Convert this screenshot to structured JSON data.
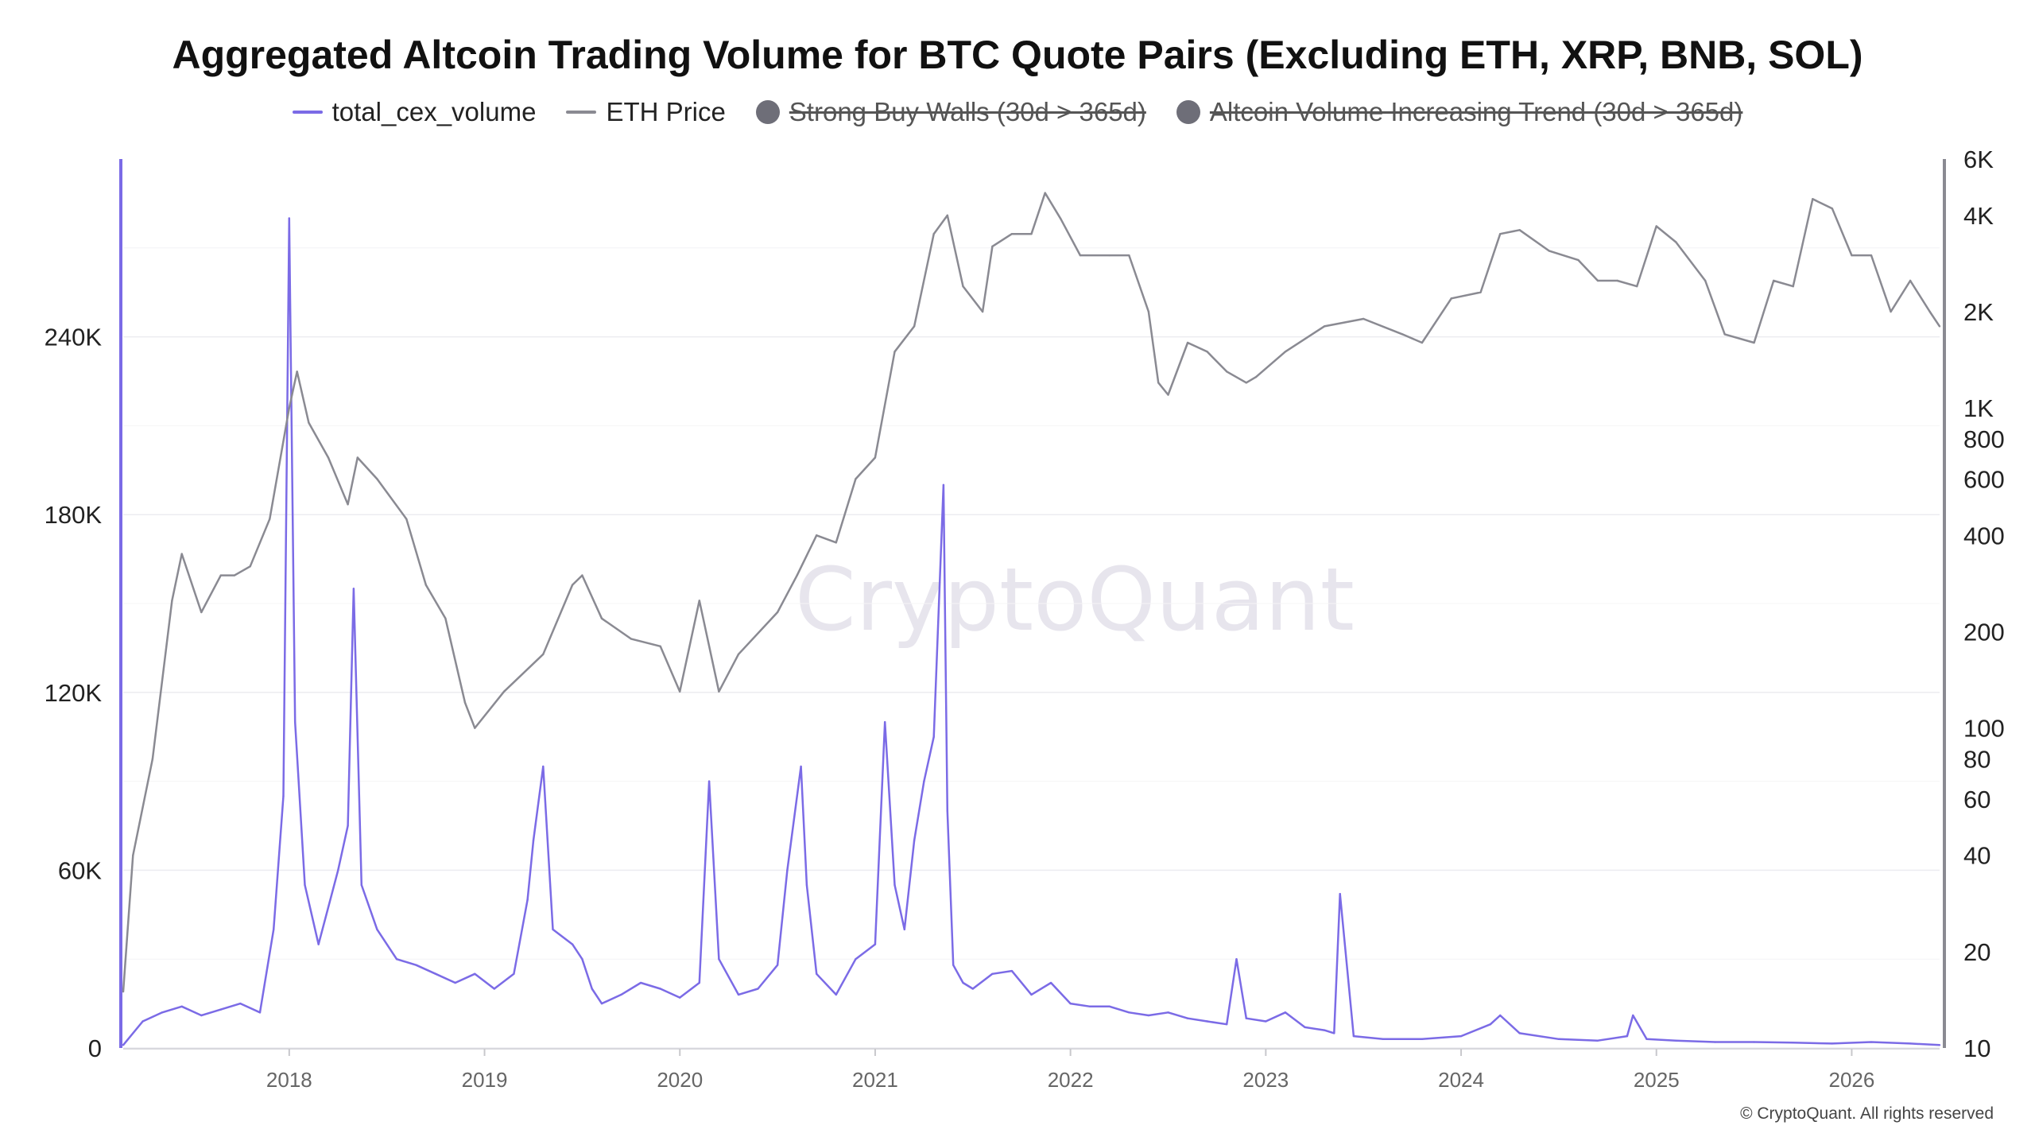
{
  "title": "Aggregated Altcoin Trading Volume for BTC Quote Pairs (Excluding ETH, XRP, BNB, SOL)",
  "watermark": "CryptoQuant",
  "copyright": "© CryptoQuant. All rights reserved",
  "legend": [
    {
      "label": "total_cex_volume",
      "type": "line",
      "color": "#7b6be6",
      "active": true
    },
    {
      "label": "ETH Price",
      "type": "line",
      "color": "#8a8a92",
      "active": true
    },
    {
      "label": "Strong Buy Walls (30d > 365d)",
      "type": "dot",
      "color": "#6e6e78",
      "active": false
    },
    {
      "label": "Altcoin Volume Increasing Trend (30d > 365d)",
      "type": "dot",
      "color": "#6e6e78",
      "active": false
    }
  ],
  "chart_data": {
    "type": "line",
    "x_ticks": [
      "2018",
      "2019",
      "2020",
      "2021",
      "2022",
      "2023",
      "2024",
      "2025",
      "2026"
    ],
    "x_range": [
      2017.15,
      2026.45
    ],
    "y_left": {
      "label": "",
      "ticks": [
        "0",
        "60K",
        "120K",
        "180K",
        "240K"
      ],
      "tick_values": [
        0,
        60000,
        120000,
        180000,
        240000
      ],
      "range": [
        0,
        300000
      ]
    },
    "y_right": {
      "label": "",
      "scale": "log",
      "ticks": [
        "10",
        "20",
        "40",
        "60",
        "80",
        "100",
        "200",
        "400",
        "600",
        "800",
        "1K",
        "2K",
        "4K",
        "6K"
      ],
      "tick_values": [
        10,
        20,
        40,
        60,
        80,
        100,
        200,
        400,
        600,
        800,
        1000,
        2000,
        4000,
        6000
      ],
      "range": [
        10,
        6000
      ]
    },
    "grid": true,
    "series": [
      {
        "name": "total_cex_volume",
        "axis": "left",
        "color": "#7b6be6",
        "x": [
          2017.15,
          2017.25,
          2017.35,
          2017.45,
          2017.55,
          2017.65,
          2017.75,
          2017.85,
          2017.92,
          2017.97,
          2018.0,
          2018.03,
          2018.08,
          2018.15,
          2018.25,
          2018.3,
          2018.33,
          2018.37,
          2018.45,
          2018.55,
          2018.65,
          2018.75,
          2018.85,
          2018.95,
          2019.05,
          2019.15,
          2019.22,
          2019.25,
          2019.3,
          2019.35,
          2019.45,
          2019.5,
          2019.55,
          2019.6,
          2019.7,
          2019.8,
          2019.9,
          2020.0,
          2020.1,
          2020.15,
          2020.2,
          2020.3,
          2020.4,
          2020.5,
          2020.55,
          2020.62,
          2020.65,
          2020.7,
          2020.8,
          2020.9,
          2021.0,
          2021.05,
          2021.1,
          2021.15,
          2021.2,
          2021.25,
          2021.3,
          2021.35,
          2021.37,
          2021.4,
          2021.45,
          2021.5,
          2021.6,
          2021.7,
          2021.8,
          2021.9,
          2022.0,
          2022.1,
          2022.2,
          2022.3,
          2022.4,
          2022.5,
          2022.6,
          2022.7,
          2022.8,
          2022.85,
          2022.9,
          2023.0,
          2023.1,
          2023.2,
          2023.3,
          2023.35,
          2023.38,
          2023.45,
          2023.6,
          2023.8,
          2024.0,
          2024.15,
          2024.2,
          2024.3,
          2024.5,
          2024.7,
          2024.85,
          2024.88,
          2024.95,
          2025.1,
          2025.3,
          2025.5,
          2025.7,
          2025.9,
          2026.1,
          2026.3,
          2026.45
        ],
        "values": [
          1000,
          9000,
          12000,
          14000,
          11000,
          13000,
          15000,
          12000,
          40000,
          85000,
          280000,
          110000,
          55000,
          35000,
          60000,
          75000,
          155000,
          55000,
          40000,
          30000,
          28000,
          25000,
          22000,
          25000,
          20000,
          25000,
          50000,
          70000,
          95000,
          40000,
          35000,
          30000,
          20000,
          15000,
          18000,
          22000,
          20000,
          17000,
          22000,
          90000,
          30000,
          18000,
          20000,
          28000,
          60000,
          95000,
          55000,
          25000,
          18000,
          30000,
          35000,
          110000,
          55000,
          40000,
          70000,
          90000,
          105000,
          190000,
          80000,
          28000,
          22000,
          20000,
          25000,
          26000,
          18000,
          22000,
          15000,
          14000,
          14000,
          12000,
          11000,
          12000,
          10000,
          9000,
          8000,
          30000,
          10000,
          9000,
          12000,
          7000,
          6000,
          5000,
          52000,
          4000,
          3000,
          3000,
          4000,
          8000,
          11000,
          5000,
          3000,
          2500,
          4000,
          11000,
          3000,
          2500,
          2000,
          2000,
          1800,
          1500,
          2000,
          1500,
          1000
        ]
      },
      {
        "name": "ETH Price",
        "axis": "right",
        "color": "#8a8a92",
        "x": [
          2017.15,
          2017.2,
          2017.3,
          2017.4,
          2017.45,
          2017.55,
          2017.65,
          2017.72,
          2017.8,
          2017.9,
          2018.0,
          2018.04,
          2018.1,
          2018.2,
          2018.3,
          2018.35,
          2018.45,
          2018.6,
          2018.7,
          2018.8,
          2018.9,
          2018.95,
          2019.1,
          2019.3,
          2019.45,
          2019.5,
          2019.6,
          2019.75,
          2019.9,
          2020.0,
          2020.1,
          2020.2,
          2020.3,
          2020.5,
          2020.6,
          2020.7,
          2020.8,
          2020.9,
          2021.0,
          2021.1,
          2021.2,
          2021.3,
          2021.37,
          2021.45,
          2021.55,
          2021.6,
          2021.7,
          2021.8,
          2021.87,
          2021.95,
          2022.05,
          2022.2,
          2022.3,
          2022.4,
          2022.45,
          2022.5,
          2022.6,
          2022.7,
          2022.8,
          2022.9,
          2022.95,
          2023.1,
          2023.3,
          2023.5,
          2023.7,
          2023.8,
          2023.95,
          2024.1,
          2024.2,
          2024.3,
          2024.45,
          2024.6,
          2024.7,
          2024.8,
          2024.9,
          2025.0,
          2025.1,
          2025.25,
          2025.35,
          2025.5,
          2025.6,
          2025.7,
          2025.8,
          2025.9,
          2026.0,
          2026.1,
          2026.2,
          2026.3,
          2026.4,
          2026.45
        ],
        "values": [
          15,
          40,
          80,
          250,
          350,
          230,
          300,
          300,
          320,
          450,
          1000,
          1300,
          900,
          700,
          500,
          700,
          600,
          450,
          280,
          220,
          120,
          100,
          130,
          170,
          280,
          300,
          220,
          190,
          180,
          130,
          250,
          130,
          170,
          230,
          300,
          400,
          380,
          600,
          700,
          1500,
          1800,
          3500,
          4000,
          2400,
          2000,
          3200,
          3500,
          3500,
          4700,
          3900,
          3000,
          3000,
          3000,
          2000,
          1200,
          1100,
          1600,
          1500,
          1300,
          1200,
          1250,
          1500,
          1800,
          1900,
          1700,
          1600,
          2200,
          2300,
          3500,
          3600,
          3100,
          2900,
          2500,
          2500,
          2400,
          3700,
          3300,
          2500,
          1700,
          1600,
          2500,
          2400,
          4500,
          4200,
          3000,
          3000,
          2000,
          2500,
          2000,
          1800
        ]
      }
    ]
  }
}
